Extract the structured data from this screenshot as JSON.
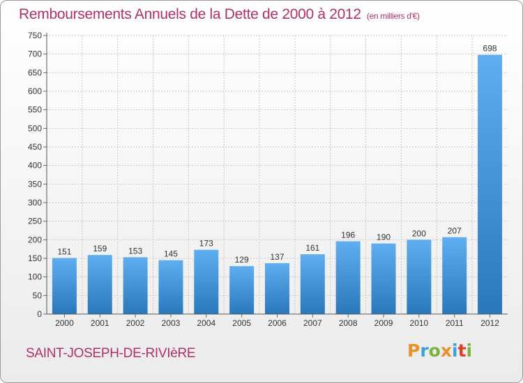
{
  "header": {
    "title": "Remboursements Annuels de la Dette de 2000 à 2012",
    "unit": "(en milliers d'€)"
  },
  "footer": {
    "commune": "SAINT-JOSEPH-DE-RIVIèRE",
    "brand": "Proxiti",
    "brand_letters": [
      "P",
      "r",
      "o",
      "x",
      "i",
      "t",
      "i"
    ],
    "brand_colors": [
      "#e8902a",
      "#3aa0d8",
      "#7ab53a",
      "#e8902a",
      "#3aa0d8",
      "#d8402a",
      "#7ab53a"
    ]
  },
  "colors": {
    "bar_light": "#5eaef0",
    "bar_dark": "#2a78bc",
    "title": "#b0306a",
    "grid": "#c8c8c8"
  },
  "chart_data": {
    "type": "bar",
    "categories": [
      "2000",
      "2001",
      "2002",
      "2003",
      "2004",
      "2005",
      "2006",
      "2007",
      "2008",
      "2009",
      "2010",
      "2011",
      "2012"
    ],
    "values": [
      151,
      159,
      153,
      145,
      173,
      129,
      137,
      161,
      196,
      190,
      200,
      207,
      698
    ],
    "ylim": [
      0,
      750
    ],
    "yticks": [
      0,
      50,
      100,
      150,
      200,
      250,
      300,
      350,
      400,
      450,
      500,
      550,
      600,
      650,
      700,
      750
    ],
    "grid": true,
    "data_labels": true
  }
}
